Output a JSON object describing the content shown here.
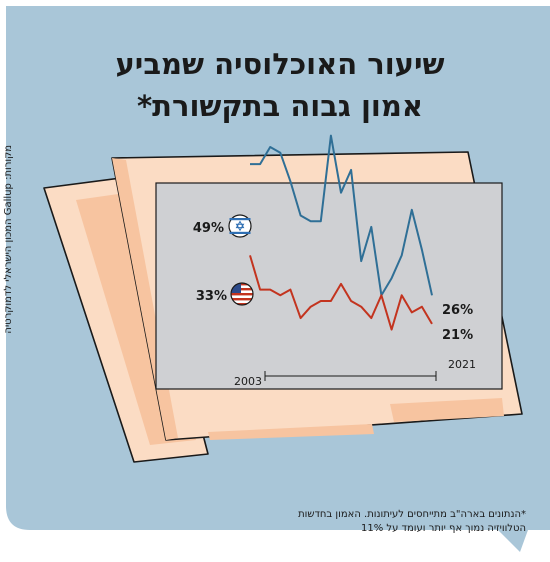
{
  "title_line1": "שיעור האוכלוסיה שמביע",
  "title_line2": "אמון גבוה בתקשורת*",
  "source": "מקורות: Gallup המכון הישראלי לדמוקרטיה",
  "footnote": "*הנתונים בארה\"ב מתייחסים לעיתונות. האמון בחדשות הטלוויזיה נמוך אף יותר ועומד על 11%",
  "colors": {
    "background": "#a9c6d8",
    "paper": "#fbdcc4",
    "paper_shade": "#f7c4a0",
    "outline": "#1a1a1a",
    "plot_area": "#cfd0d3",
    "israel_line": "#2f6f96",
    "usa_line": "#c3341f"
  },
  "icons": [
    "israel-flag-icon",
    "usa-flag-icon"
  ],
  "chart_data": {
    "type": "line",
    "x": [
      2003,
      2004,
      2005,
      2006,
      2007,
      2008,
      2009,
      2010,
      2011,
      2012,
      2013,
      2014,
      2015,
      2016,
      2017,
      2018,
      2019,
      2020,
      2021
    ],
    "xlim": [
      2003,
      2021
    ],
    "ylim": [
      8,
      62
    ],
    "grid": false,
    "x_range_labels": [
      "2003",
      "2021"
    ],
    "series": [
      {
        "flag": "israel-flag-icon",
        "start_label": "49%",
        "end_label": "26%",
        "values": [
          49,
          49,
          52,
          51,
          46,
          40,
          39,
          39,
          54,
          44,
          48,
          32,
          38,
          26,
          29,
          33,
          41,
          34,
          26
        ]
      },
      {
        "flag": "usa-flag-icon",
        "start_label": "33%",
        "end_label": "21%",
        "values": [
          33,
          27,
          27,
          26,
          27,
          22,
          24,
          25,
          25,
          28,
          25,
          24,
          22,
          26,
          20,
          26,
          23,
          24,
          21
        ]
      }
    ]
  }
}
